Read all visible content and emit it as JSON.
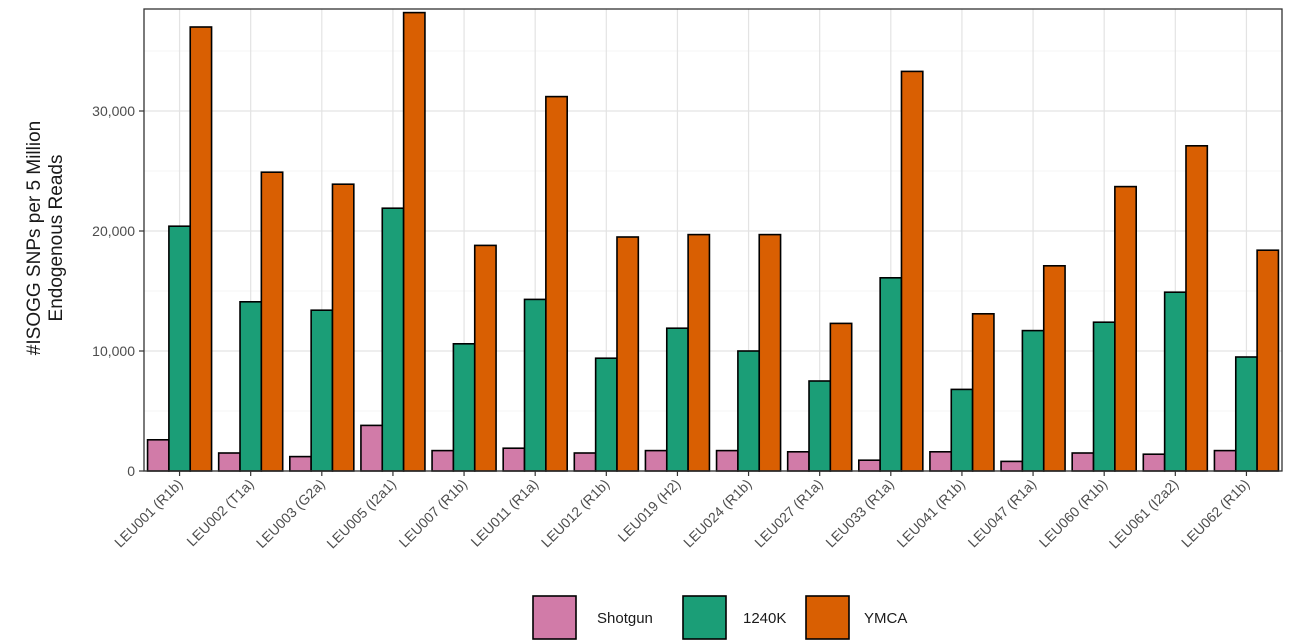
{
  "chart_data": {
    "type": "bar",
    "title": "",
    "xlabel": "",
    "ylabel_lines": [
      "#ISOGG SNPs per 5 Million",
      "Endogenous Reads"
    ],
    "ylim": [
      0,
      38500
    ],
    "yticks": [
      0,
      10000,
      20000,
      30000
    ],
    "ytick_labels": [
      "0",
      "10,000",
      "20,000",
      "30,000"
    ],
    "grid": true,
    "legend_position": "bottom",
    "categories": [
      "LEU001 (R1b)",
      "LEU002 (T1a)",
      "LEU003 (G2a)",
      "LEU005 (I2a1)",
      "LEU007 (R1b)",
      "LEU011 (R1a)",
      "LEU012 (R1b)",
      "LEU019 (H2)",
      "LEU024 (R1b)",
      "LEU027 (R1a)",
      "LEU033 (R1a)",
      "LEU041 (R1b)",
      "LEU047 (R1a)",
      "LEU060 (R1b)",
      "LEU061 (I2a2)",
      "LEU062 (R1b)"
    ],
    "series": [
      {
        "name": "Shotgun",
        "color": "#d17ba8",
        "values": [
          2600,
          1500,
          1200,
          3800,
          1700,
          1900,
          1500,
          1700,
          1700,
          1600,
          900,
          1600,
          800,
          1500,
          1400,
          1700
        ]
      },
      {
        "name": "1240K",
        "color": "#1b9e77",
        "values": [
          20400,
          14100,
          13400,
          21900,
          10600,
          14300,
          9400,
          11900,
          10000,
          7500,
          16100,
          6800,
          11700,
          12400,
          14900,
          9500
        ]
      },
      {
        "name": "YMCA",
        "color": "#d95f02",
        "values": [
          37000,
          24900,
          23900,
          38200,
          18800,
          31200,
          19500,
          19700,
          19700,
          12300,
          33300,
          13100,
          17100,
          23700,
          27100,
          18400
        ]
      }
    ]
  }
}
